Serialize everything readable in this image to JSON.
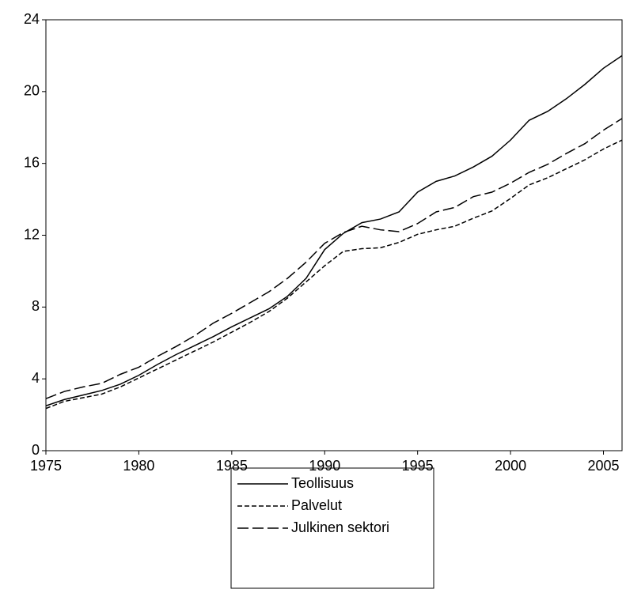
{
  "chart_data": {
    "type": "line",
    "x": [
      1975,
      1976,
      1977,
      1978,
      1979,
      1980,
      1981,
      1982,
      1983,
      1984,
      1985,
      1986,
      1987,
      1988,
      1989,
      1990,
      1991,
      1992,
      1993,
      1994,
      1995,
      1996,
      1997,
      1998,
      1999,
      2000,
      2001,
      2002,
      2003,
      2004,
      2005,
      2006
    ],
    "series": [
      {
        "name": "Teollisuus",
        "color": "#000000",
        "dash": "solid",
        "values": [
          2.5,
          2.85,
          3.1,
          3.35,
          3.7,
          4.2,
          4.8,
          5.35,
          5.85,
          6.35,
          6.9,
          7.4,
          7.9,
          8.6,
          9.6,
          11.2,
          12.1,
          12.7,
          12.9,
          13.3,
          14.4,
          15.0,
          15.3,
          15.8,
          16.4,
          17.3,
          18.4,
          18.9,
          19.6,
          20.4,
          21.3,
          22.0
        ]
      },
      {
        "name": "Palvelut",
        "color": "#000000",
        "dash": "short",
        "values": [
          2.35,
          2.75,
          2.95,
          3.15,
          3.55,
          4.05,
          4.55,
          5.05,
          5.55,
          6.05,
          6.6,
          7.15,
          7.75,
          8.5,
          9.4,
          10.3,
          11.1,
          11.25,
          11.3,
          11.6,
          12.05,
          12.3,
          12.5,
          12.95,
          13.35,
          14.05,
          14.8,
          15.2,
          15.7,
          16.2,
          16.8,
          17.3
        ]
      },
      {
        "name": "Julkinen sektori",
        "color": "#000000",
        "dash": "long",
        "values": [
          2.9,
          3.3,
          3.55,
          3.75,
          4.25,
          4.65,
          5.25,
          5.8,
          6.4,
          7.1,
          7.65,
          8.25,
          8.85,
          9.6,
          10.5,
          11.55,
          12.15,
          12.5,
          12.3,
          12.2,
          12.65,
          13.3,
          13.55,
          14.15,
          14.4,
          14.9,
          15.5,
          15.95,
          16.55,
          17.1,
          17.85,
          18.5
        ]
      }
    ],
    "xlim": [
      1975,
      2006
    ],
    "xticks": [
      1975,
      1980,
      1985,
      1990,
      1995,
      2000,
      2005
    ],
    "ylim": [
      0,
      24
    ],
    "yticks": [
      0,
      4,
      8,
      12,
      16,
      20,
      24
    ],
    "grid": false,
    "legend": "bottom"
  }
}
